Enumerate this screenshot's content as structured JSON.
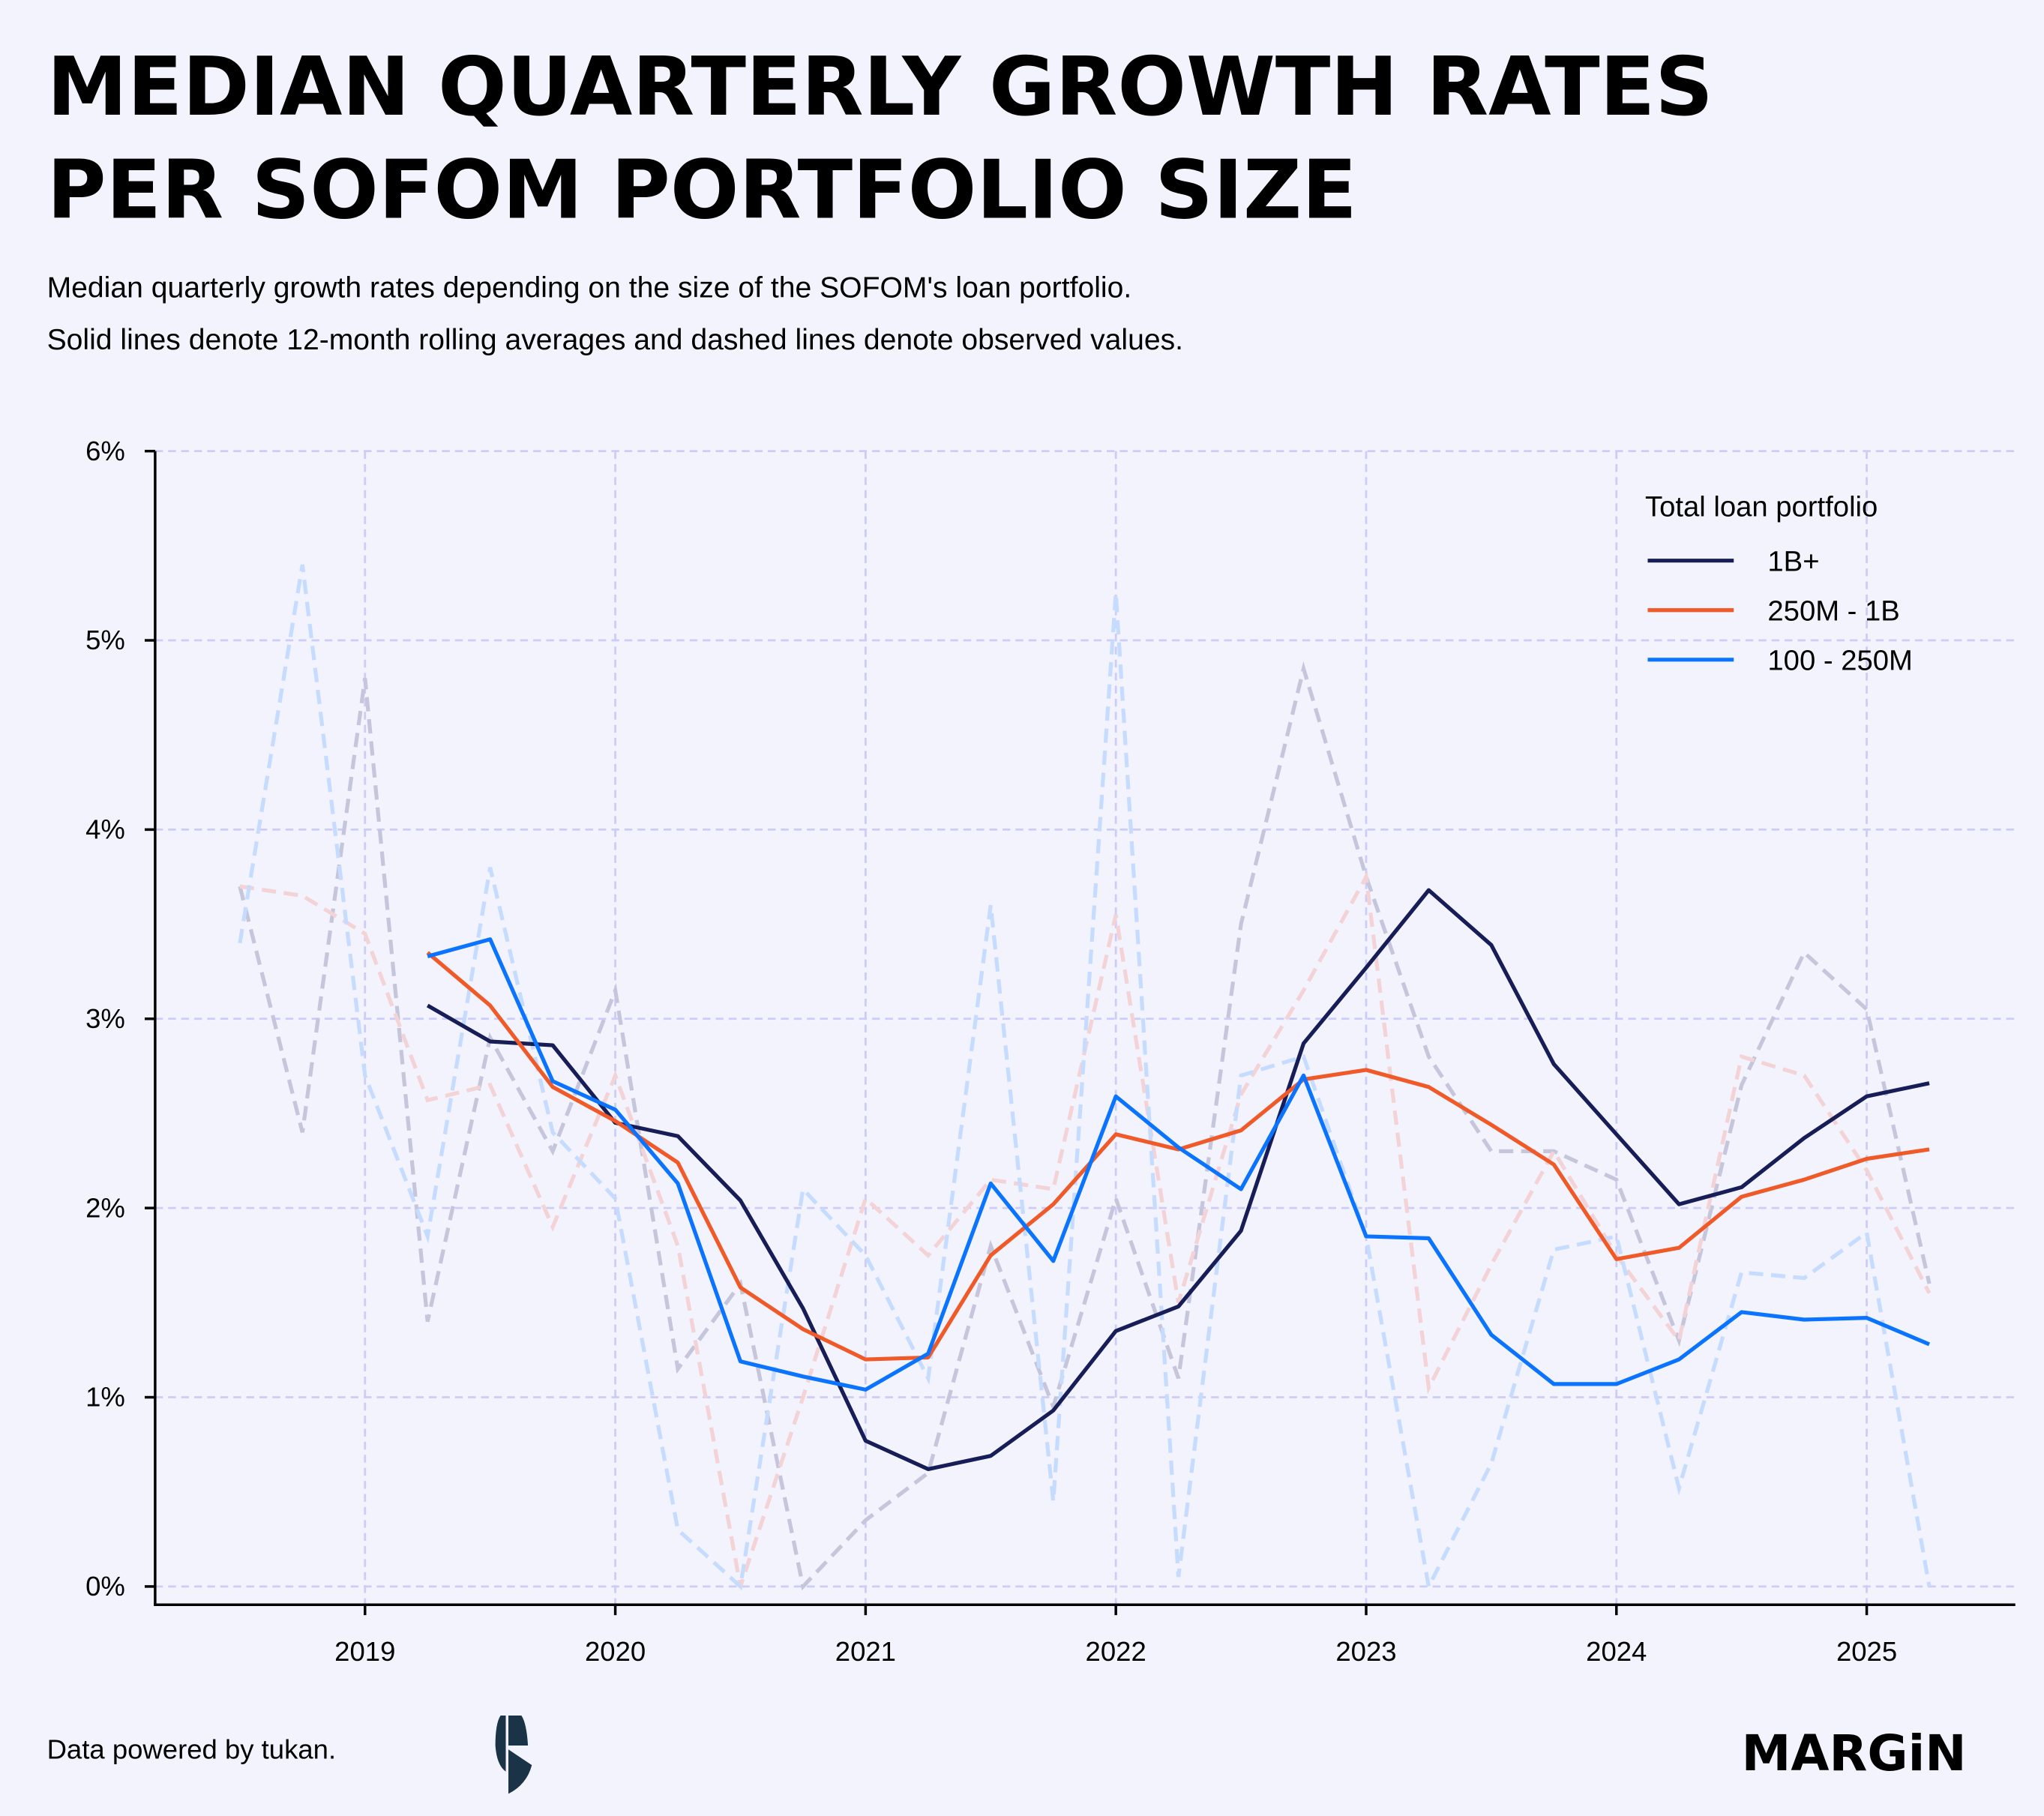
{
  "title_line1": "MEDIAN QUARTERLY GROWTH RATES",
  "title_line2": "PER SOFOM PORTFOLIO SIZE",
  "subtitle_line1": "Median quarterly growth rates depending on the size of the SOFOM's loan portfolio.",
  "subtitle_line2": "Solid lines denote 12-month rolling averages and dashed lines denote observed values.",
  "footer": {
    "source": "Data powered by tukan.",
    "brand_logo": "MARGiN",
    "tukan_logo": "tukan-logo-icon"
  },
  "chart_data": {
    "type": "line",
    "title": "MEDIAN QUARTERLY GROWTH RATES PER SOFOM PORTFOLIO SIZE",
    "xlabel": "",
    "ylabel": "",
    "xlim": [
      2018.2,
      2025.6
    ],
    "ylim": [
      0,
      6
    ],
    "grid": true,
    "x_ticks": [
      2019,
      2020,
      2021,
      2022,
      2023,
      2024,
      2025
    ],
    "x_tick_labels": [
      "2019",
      "2020",
      "2021",
      "2022",
      "2023",
      "2024",
      "2025"
    ],
    "y_ticks": [
      0,
      1,
      2,
      3,
      4,
      5,
      6
    ],
    "y_tick_labels": [
      "0%",
      "1%",
      "2%",
      "3%",
      "4%",
      "5%",
      "6%"
    ],
    "legend": {
      "title": "Total loan portfolio",
      "placement": "top-right"
    },
    "x": [
      2018.5,
      2018.75,
      2019.0,
      2019.25,
      2019.5,
      2019.75,
      2020.0,
      2020.25,
      2020.5,
      2020.75,
      2021.0,
      2021.25,
      2021.5,
      2021.75,
      2022.0,
      2022.25,
      2022.5,
      2022.75,
      2023.0,
      2023.25,
      2023.5,
      2023.75,
      2024.0,
      2024.25,
      2024.5,
      2024.75,
      2025.0,
      2025.25
    ],
    "series": [
      {
        "name": "1B+",
        "color": "#161d57",
        "observed_color": "#c5c6dc",
        "observed": [
          3.7,
          2.4,
          4.8,
          1.4,
          2.9,
          2.3,
          3.15,
          1.15,
          1.6,
          0.0,
          0.35,
          0.6,
          1.8,
          0.95,
          2.05,
          1.1,
          3.5,
          4.85,
          3.75,
          2.8,
          2.3,
          2.3,
          2.15,
          1.3,
          2.65,
          3.35,
          3.05,
          1.6
        ],
        "rolling": [
          null,
          null,
          null,
          3.07,
          2.88,
          2.86,
          2.45,
          2.38,
          2.04,
          1.47,
          0.77,
          0.62,
          0.69,
          0.93,
          1.35,
          1.48,
          1.88,
          2.87,
          3.27,
          3.68,
          3.39,
          2.76,
          2.39,
          2.02,
          2.11,
          2.37,
          2.59,
          2.66
        ]
      },
      {
        "name": "250M - 1B",
        "color": "#f05a28",
        "observed_color": "#f3d3d6",
        "observed": [
          3.7,
          3.65,
          3.45,
          2.57,
          2.65,
          1.9,
          2.7,
          1.8,
          0.0,
          1.0,
          2.05,
          1.75,
          2.15,
          2.1,
          3.55,
          1.5,
          2.6,
          3.15,
          3.75,
          1.05,
          1.7,
          2.3,
          1.75,
          1.3,
          2.8,
          2.7,
          2.2,
          1.55
        ],
        "rolling": [
          null,
          null,
          null,
          3.35,
          3.07,
          2.64,
          2.46,
          2.24,
          1.58,
          1.36,
          1.2,
          1.21,
          1.75,
          2.02,
          2.39,
          2.31,
          2.41,
          2.68,
          2.73,
          2.64,
          2.44,
          2.23,
          1.73,
          1.79,
          2.06,
          2.15,
          2.26,
          2.31
        ]
      },
      {
        "name": "100 - 250M",
        "color": "#0a74ff",
        "observed_color": "#c6dcfe",
        "observed": [
          3.4,
          5.4,
          2.7,
          1.85,
          3.8,
          2.4,
          2.05,
          0.3,
          0.0,
          2.1,
          1.75,
          1.1,
          3.6,
          0.45,
          5.25,
          0.05,
          2.7,
          2.8,
          1.85,
          0.0,
          0.65,
          1.78,
          1.85,
          0.52,
          1.66,
          1.63,
          1.87,
          0.0
        ],
        "rolling": [
          null,
          null,
          null,
          3.33,
          3.42,
          2.67,
          2.52,
          2.13,
          1.19,
          1.11,
          1.04,
          1.23,
          2.13,
          1.72,
          2.59,
          2.32,
          2.1,
          2.7,
          1.85,
          1.84,
          1.33,
          1.07,
          1.07,
          1.2,
          1.45,
          1.41,
          1.42,
          1.28
        ]
      }
    ]
  }
}
